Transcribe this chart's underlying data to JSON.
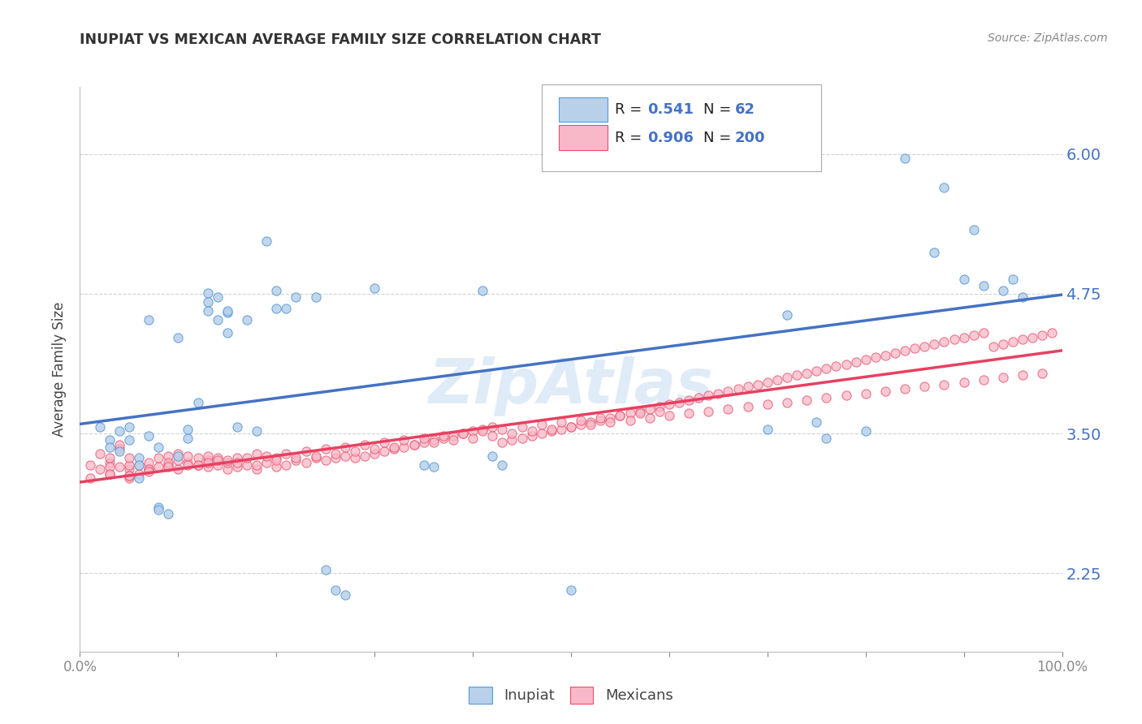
{
  "title": "INUPIAT VS MEXICAN AVERAGE FAMILY SIZE CORRELATION CHART",
  "source": "Source: ZipAtlas.com",
  "ylabel": "Average Family Size",
  "ytick_values": [
    2.25,
    3.5,
    4.75,
    6.0
  ],
  "ytick_labels": [
    "2.25",
    "3.50",
    "4.75",
    "6.00"
  ],
  "watermark": "ZipAtlas",
  "legend_inupiat_R": "0.541",
  "legend_inupiat_N": "62",
  "legend_mexicans_R": "0.906",
  "legend_mexicans_N": "200",
  "inupiat_fill_color": "#b8d0ea",
  "inupiat_edge_color": "#5b9bd5",
  "mexicans_fill_color": "#f8b8c8",
  "mexicans_edge_color": "#e8506a",
  "inupiat_line_color": "#4472c4",
  "mexicans_line_color": "#e84060",
  "background_color": "#ffffff",
  "grid_color": "#cccccc",
  "xlim": [
    0.0,
    1.0
  ],
  "ylim": [
    1.55,
    6.6
  ],
  "inupiat_scatter_x": [
    0.02,
    0.03,
    0.03,
    0.04,
    0.04,
    0.05,
    0.05,
    0.06,
    0.06,
    0.06,
    0.07,
    0.07,
    0.08,
    0.08,
    0.08,
    0.09,
    0.1,
    0.1,
    0.11,
    0.11,
    0.12,
    0.13,
    0.13,
    0.13,
    0.14,
    0.14,
    0.15,
    0.15,
    0.15,
    0.16,
    0.17,
    0.18,
    0.19,
    0.2,
    0.2,
    0.21,
    0.22,
    0.24,
    0.25,
    0.26,
    0.27,
    0.3,
    0.35,
    0.36,
    0.41,
    0.42,
    0.43,
    0.5,
    0.7,
    0.72,
    0.75,
    0.76,
    0.8,
    0.84,
    0.87,
    0.88,
    0.9,
    0.91,
    0.92,
    0.94,
    0.95,
    0.96
  ],
  "inupiat_scatter_y": [
    3.56,
    3.44,
    3.38,
    3.52,
    3.34,
    3.56,
    3.44,
    3.28,
    3.22,
    3.1,
    3.48,
    4.52,
    3.38,
    2.84,
    2.82,
    2.78,
    3.3,
    4.36,
    3.54,
    3.46,
    3.78,
    4.76,
    4.68,
    4.6,
    4.52,
    4.72,
    4.58,
    4.6,
    4.4,
    3.56,
    4.52,
    3.52,
    5.22,
    4.78,
    4.62,
    4.62,
    4.72,
    4.72,
    2.28,
    2.1,
    2.06,
    4.8,
    3.22,
    3.2,
    4.78,
    3.3,
    3.22,
    2.1,
    3.54,
    4.56,
    3.6,
    3.46,
    3.52,
    5.96,
    5.12,
    5.7,
    4.88,
    5.32,
    4.82,
    4.78,
    4.88,
    4.72
  ],
  "mexicans_scatter_x": [
    0.01,
    0.02,
    0.02,
    0.03,
    0.03,
    0.03,
    0.04,
    0.04,
    0.04,
    0.05,
    0.05,
    0.05,
    0.05,
    0.06,
    0.06,
    0.07,
    0.07,
    0.08,
    0.08,
    0.09,
    0.09,
    0.1,
    0.1,
    0.1,
    0.11,
    0.11,
    0.12,
    0.12,
    0.13,
    0.13,
    0.13,
    0.14,
    0.14,
    0.15,
    0.15,
    0.16,
    0.16,
    0.17,
    0.18,
    0.18,
    0.19,
    0.2,
    0.2,
    0.21,
    0.22,
    0.23,
    0.24,
    0.25,
    0.26,
    0.27,
    0.28,
    0.29,
    0.3,
    0.31,
    0.32,
    0.33,
    0.34,
    0.35,
    0.36,
    0.37,
    0.38,
    0.39,
    0.4,
    0.41,
    0.42,
    0.43,
    0.44,
    0.45,
    0.46,
    0.47,
    0.48,
    0.49,
    0.5,
    0.51,
    0.52,
    0.53,
    0.54,
    0.55,
    0.56,
    0.57,
    0.58,
    0.59,
    0.6,
    0.61,
    0.62,
    0.63,
    0.64,
    0.65,
    0.66,
    0.67,
    0.68,
    0.69,
    0.7,
    0.71,
    0.72,
    0.73,
    0.74,
    0.75,
    0.76,
    0.77,
    0.78,
    0.79,
    0.8,
    0.81,
    0.82,
    0.83,
    0.84,
    0.85,
    0.86,
    0.87,
    0.88,
    0.89,
    0.9,
    0.91,
    0.92,
    0.93,
    0.94,
    0.95,
    0.96,
    0.97,
    0.98,
    0.99,
    0.03,
    0.05,
    0.07,
    0.09,
    0.12,
    0.14,
    0.16,
    0.18,
    0.2,
    0.22,
    0.24,
    0.26,
    0.28,
    0.3,
    0.32,
    0.34,
    0.36,
    0.38,
    0.4,
    0.42,
    0.44,
    0.46,
    0.48,
    0.5,
    0.52,
    0.54,
    0.56,
    0.58,
    0.6,
    0.62,
    0.64,
    0.66,
    0.68,
    0.7,
    0.72,
    0.74,
    0.76,
    0.78,
    0.8,
    0.82,
    0.84,
    0.86,
    0.88,
    0.9,
    0.92,
    0.94,
    0.96,
    0.98,
    0.01,
    0.03,
    0.05,
    0.07,
    0.09,
    0.11,
    0.13,
    0.15,
    0.17,
    0.19,
    0.21,
    0.23,
    0.25,
    0.27,
    0.29,
    0.31,
    0.33,
    0.35,
    0.37,
    0.39,
    0.41,
    0.43,
    0.45,
    0.47,
    0.49,
    0.51,
    0.53,
    0.55,
    0.57,
    0.59
  ],
  "mexicans_scatter_y": [
    3.22,
    3.18,
    3.32,
    3.14,
    3.24,
    3.28,
    3.2,
    3.36,
    3.4,
    3.1,
    3.18,
    3.22,
    3.28,
    3.14,
    3.22,
    3.18,
    3.24,
    3.2,
    3.28,
    3.22,
    3.3,
    3.18,
    3.26,
    3.32,
    3.24,
    3.3,
    3.22,
    3.28,
    3.2,
    3.26,
    3.3,
    3.22,
    3.28,
    3.18,
    3.24,
    3.2,
    3.28,
    3.22,
    3.18,
    3.32,
    3.24,
    3.2,
    3.28,
    3.22,
    3.26,
    3.24,
    3.28,
    3.26,
    3.28,
    3.3,
    3.28,
    3.3,
    3.32,
    3.34,
    3.36,
    3.38,
    3.4,
    3.42,
    3.44,
    3.46,
    3.48,
    3.5,
    3.52,
    3.54,
    3.56,
    3.42,
    3.44,
    3.46,
    3.48,
    3.5,
    3.52,
    3.54,
    3.56,
    3.58,
    3.6,
    3.62,
    3.64,
    3.66,
    3.68,
    3.7,
    3.72,
    3.74,
    3.76,
    3.78,
    3.8,
    3.82,
    3.84,
    3.86,
    3.88,
    3.9,
    3.92,
    3.94,
    3.96,
    3.98,
    4.0,
    4.02,
    4.04,
    4.06,
    4.08,
    4.1,
    4.12,
    4.14,
    4.16,
    4.18,
    4.2,
    4.22,
    4.24,
    4.26,
    4.28,
    4.3,
    4.32,
    4.34,
    4.36,
    4.38,
    4.4,
    4.28,
    4.3,
    4.32,
    4.34,
    4.36,
    4.38,
    4.4,
    3.2,
    3.12,
    3.18,
    3.24,
    3.22,
    3.26,
    3.24,
    3.22,
    3.26,
    3.28,
    3.3,
    3.32,
    3.34,
    3.36,
    3.38,
    3.4,
    3.42,
    3.44,
    3.46,
    3.48,
    3.5,
    3.52,
    3.54,
    3.56,
    3.58,
    3.6,
    3.62,
    3.64,
    3.66,
    3.68,
    3.7,
    3.72,
    3.74,
    3.76,
    3.78,
    3.8,
    3.82,
    3.84,
    3.86,
    3.88,
    3.9,
    3.92,
    3.94,
    3.96,
    3.98,
    4.0,
    4.02,
    4.04,
    3.1,
    3.14,
    3.12,
    3.16,
    3.2,
    3.22,
    3.24,
    3.26,
    3.28,
    3.3,
    3.32,
    3.34,
    3.36,
    3.38,
    3.4,
    3.42,
    3.44,
    3.46,
    3.48,
    3.5,
    3.52,
    3.54,
    3.56,
    3.58,
    3.6,
    3.62,
    3.64,
    3.66,
    3.68,
    3.7
  ]
}
